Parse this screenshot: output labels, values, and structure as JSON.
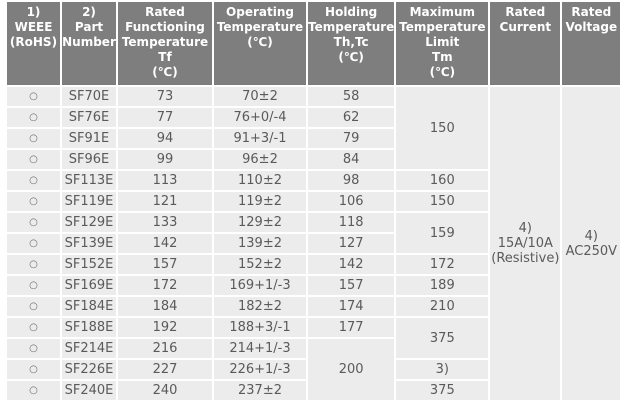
{
  "colors": {
    "header_bg": "#7e7e7e",
    "header_text": "#ffffff",
    "cell_bg": "#ececec",
    "body_text": "#5a5a5a",
    "page_bg": "#ffffff"
  },
  "symbols": {
    "weee_mark": "○"
  },
  "chart_data": {
    "type": "table",
    "columns": [
      {
        "key": "weee",
        "lines": [
          "1)",
          "WEEE",
          "(RoHS)"
        ]
      },
      {
        "key": "part-number",
        "lines": [
          "2)",
          "Part",
          "Number"
        ]
      },
      {
        "key": "rated-functioning-temperature",
        "lines": [
          "Rated",
          "Functioning",
          "Temperature",
          "Tf",
          "(℃)"
        ]
      },
      {
        "key": "operating-temperature",
        "lines": [
          "Operating",
          "Temperature",
          "(℃)"
        ]
      },
      {
        "key": "holding-temperature",
        "lines": [
          "Holding",
          "Temperature",
          "Th,Tc",
          "(℃)"
        ]
      },
      {
        "key": "maximum-temperature-limit",
        "lines": [
          "Maximum",
          "Temperature",
          "Limit",
          "Tm",
          "(℃)"
        ]
      },
      {
        "key": "rated-current",
        "lines": [
          "Rated",
          "Current"
        ]
      },
      {
        "key": "rated-voltage",
        "lines": [
          "Rated",
          "Voltage"
        ]
      }
    ],
    "rows": [
      {
        "cells": [
          {
            "col": "weee",
            "text": "○"
          },
          {
            "col": "part-number",
            "text": "SF70E"
          },
          {
            "col": "rated-functioning-temperature",
            "text": "73"
          },
          {
            "col": "operating-temperature",
            "text": "70±2"
          },
          {
            "col": "holding-temperature",
            "text": "58"
          },
          {
            "col": "maximum-temperature-limit",
            "text": "150",
            "rowspan": 4
          },
          {
            "col": "rated-current",
            "lines": [
              "4)",
              "15A/10A",
              "(Resistive)"
            ],
            "rowspan": 15
          },
          {
            "col": "rated-voltage",
            "lines": [
              "4)",
              "AC250V"
            ],
            "rowspan": 15
          }
        ]
      },
      {
        "cells": [
          {
            "col": "weee",
            "text": "○"
          },
          {
            "col": "part-number",
            "text": "SF76E"
          },
          {
            "col": "rated-functioning-temperature",
            "text": "77"
          },
          {
            "col": "operating-temperature",
            "text": "76+0/-4"
          },
          {
            "col": "holding-temperature",
            "text": "62"
          }
        ]
      },
      {
        "cells": [
          {
            "col": "weee",
            "text": "○"
          },
          {
            "col": "part-number",
            "text": "SF91E"
          },
          {
            "col": "rated-functioning-temperature",
            "text": "94"
          },
          {
            "col": "operating-temperature",
            "text": "91+3/-1"
          },
          {
            "col": "holding-temperature",
            "text": "79"
          }
        ]
      },
      {
        "cells": [
          {
            "col": "weee",
            "text": "○"
          },
          {
            "col": "part-number",
            "text": "SF96E"
          },
          {
            "col": "rated-functioning-temperature",
            "text": "99"
          },
          {
            "col": "operating-temperature",
            "text": "96±2"
          },
          {
            "col": "holding-temperature",
            "text": "84"
          }
        ]
      },
      {
        "cells": [
          {
            "col": "weee",
            "text": "○"
          },
          {
            "col": "part-number",
            "text": "SF113E"
          },
          {
            "col": "rated-functioning-temperature",
            "text": "113"
          },
          {
            "col": "operating-temperature",
            "text": "110±2"
          },
          {
            "col": "holding-temperature",
            "text": "98"
          },
          {
            "col": "maximum-temperature-limit",
            "text": "160"
          }
        ]
      },
      {
        "cells": [
          {
            "col": "weee",
            "text": "○"
          },
          {
            "col": "part-number",
            "text": "SF119E"
          },
          {
            "col": "rated-functioning-temperature",
            "text": "121"
          },
          {
            "col": "operating-temperature",
            "text": "119±2"
          },
          {
            "col": "holding-temperature",
            "text": "106"
          },
          {
            "col": "maximum-temperature-limit",
            "text": "150"
          }
        ]
      },
      {
        "cells": [
          {
            "col": "weee",
            "text": "○"
          },
          {
            "col": "part-number",
            "text": "SF129E"
          },
          {
            "col": "rated-functioning-temperature",
            "text": "133"
          },
          {
            "col": "operating-temperature",
            "text": "129±2"
          },
          {
            "col": "holding-temperature",
            "text": "118"
          },
          {
            "col": "maximum-temperature-limit",
            "text": "159",
            "rowspan": 2
          }
        ]
      },
      {
        "cells": [
          {
            "col": "weee",
            "text": "○"
          },
          {
            "col": "part-number",
            "text": "SF139E"
          },
          {
            "col": "rated-functioning-temperature",
            "text": "142"
          },
          {
            "col": "operating-temperature",
            "text": "139±2"
          },
          {
            "col": "holding-temperature",
            "text": "127"
          }
        ]
      },
      {
        "cells": [
          {
            "col": "weee",
            "text": "○"
          },
          {
            "col": "part-number",
            "text": "SF152E"
          },
          {
            "col": "rated-functioning-temperature",
            "text": "157"
          },
          {
            "col": "operating-temperature",
            "text": "152±2"
          },
          {
            "col": "holding-temperature",
            "text": "142"
          },
          {
            "col": "maximum-temperature-limit",
            "text": "172"
          }
        ]
      },
      {
        "cells": [
          {
            "col": "weee",
            "text": "○"
          },
          {
            "col": "part-number",
            "text": "SF169E"
          },
          {
            "col": "rated-functioning-temperature",
            "text": "172"
          },
          {
            "col": "operating-temperature",
            "text": "169+1/-3"
          },
          {
            "col": "holding-temperature",
            "text": "157"
          },
          {
            "col": "maximum-temperature-limit",
            "text": "189"
          }
        ]
      },
      {
        "cells": [
          {
            "col": "weee",
            "text": "○"
          },
          {
            "col": "part-number",
            "text": "SF184E"
          },
          {
            "col": "rated-functioning-temperature",
            "text": "184"
          },
          {
            "col": "operating-temperature",
            "text": "182±2"
          },
          {
            "col": "holding-temperature",
            "text": "174"
          },
          {
            "col": "maximum-temperature-limit",
            "text": "210"
          }
        ]
      },
      {
        "cells": [
          {
            "col": "weee",
            "text": "○"
          },
          {
            "col": "part-number",
            "text": "SF188E"
          },
          {
            "col": "rated-functioning-temperature",
            "text": "192"
          },
          {
            "col": "operating-temperature",
            "text": "188+3/-1"
          },
          {
            "col": "holding-temperature",
            "text": "177"
          },
          {
            "col": "maximum-temperature-limit",
            "text": "375",
            "rowspan": 2
          }
        ]
      },
      {
        "cells": [
          {
            "col": "weee",
            "text": "○"
          },
          {
            "col": "part-number",
            "text": "SF214E"
          },
          {
            "col": "rated-functioning-temperature",
            "text": "216"
          },
          {
            "col": "operating-temperature",
            "text": "214+1/-3"
          },
          {
            "col": "holding-temperature",
            "text": "200",
            "rowspan": 3
          }
        ]
      },
      {
        "cells": [
          {
            "col": "weee",
            "text": "○"
          },
          {
            "col": "part-number",
            "text": "SF226E"
          },
          {
            "col": "rated-functioning-temperature",
            "text": "227"
          },
          {
            "col": "operating-temperature",
            "text": "226+1/-3"
          },
          {
            "col": "maximum-temperature-limit",
            "text": "3)"
          }
        ]
      },
      {
        "cells": [
          {
            "col": "weee",
            "text": "○"
          },
          {
            "col": "part-number",
            "text": "SF240E"
          },
          {
            "col": "rated-functioning-temperature",
            "text": "240"
          },
          {
            "col": "operating-temperature",
            "text": "237±2"
          },
          {
            "col": "maximum-temperature-limit",
            "text": "375"
          }
        ]
      }
    ]
  }
}
